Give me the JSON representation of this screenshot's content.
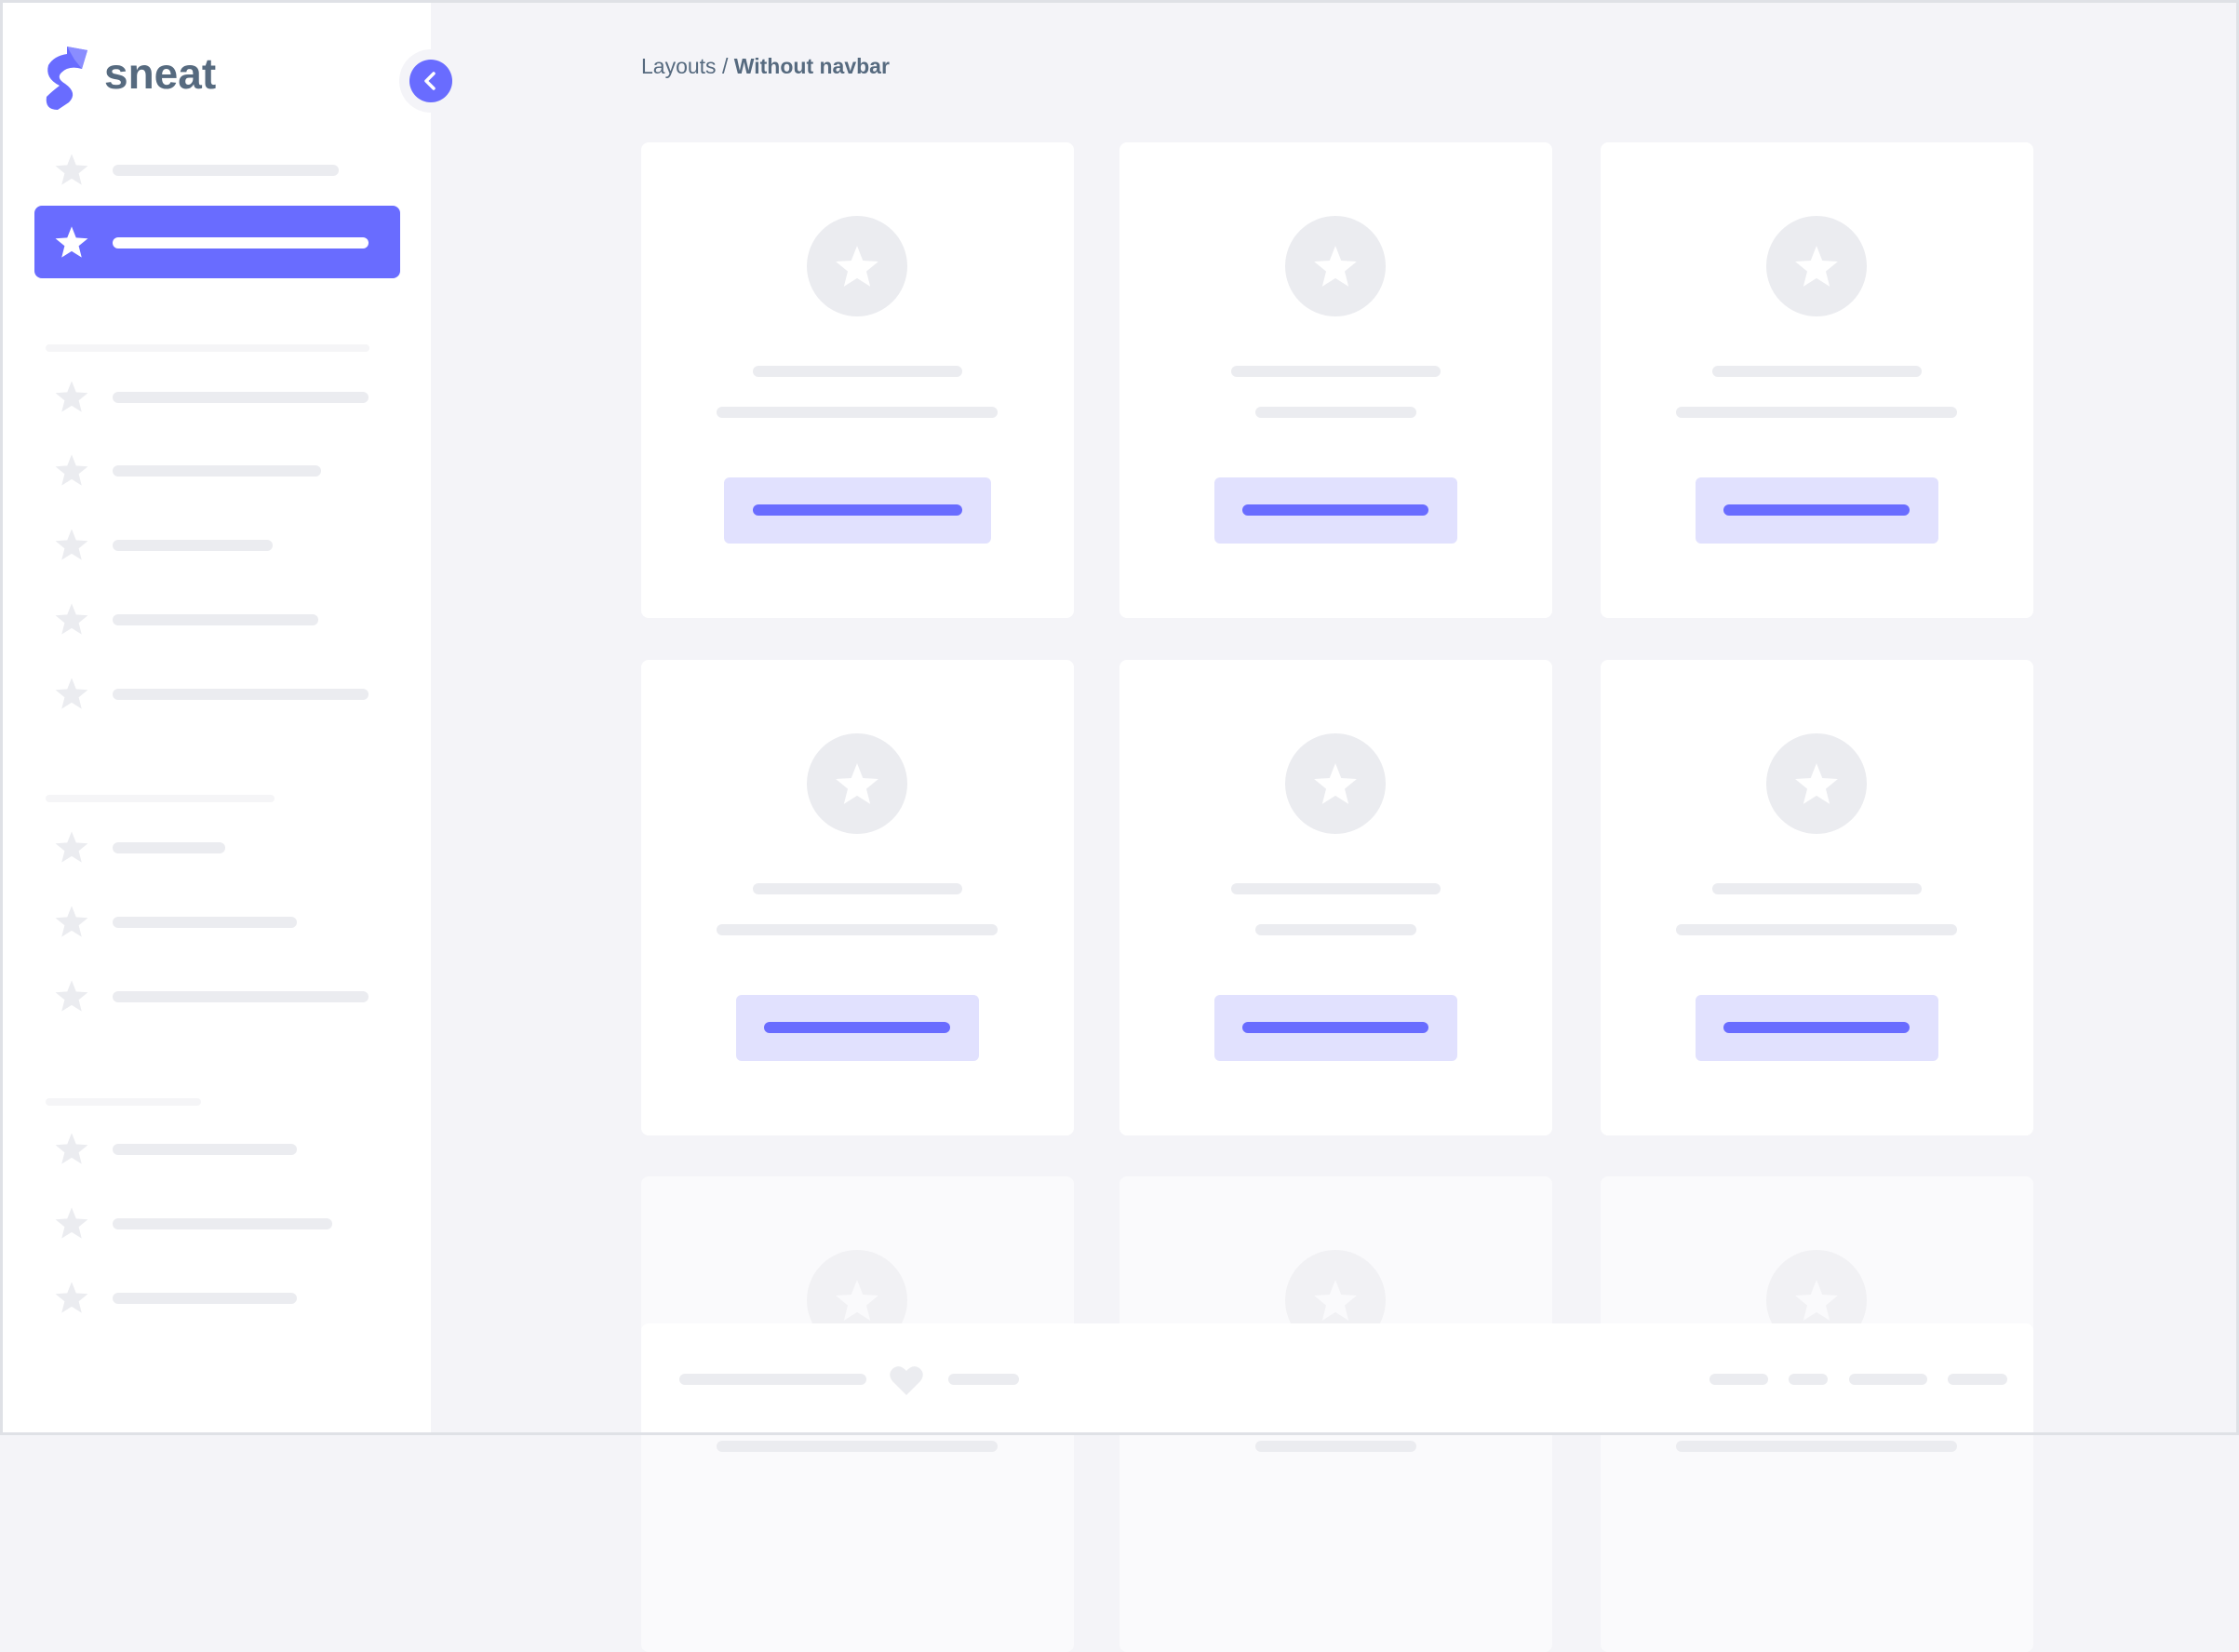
{
  "sidebar": {
    "brand": "sneat",
    "active_index": 1,
    "item_count": 13
  },
  "breadcrumb": {
    "parent": "Layouts",
    "separator": " / ",
    "current": "Without navbar"
  },
  "cards": {
    "rows": 3,
    "columns": 3,
    "faded_row": 3
  },
  "colors": {
    "primary": "#696cff",
    "primary_light": "#e1e1fe",
    "placeholder": "#ebecf0",
    "text": "#566a7f",
    "background": "#f4f4f8"
  },
  "icons": {
    "logo": "sneat-logo",
    "collapse": "chevron-left-icon",
    "nav": "star-icon",
    "card": "star-icon",
    "footer": "heart-icon"
  }
}
